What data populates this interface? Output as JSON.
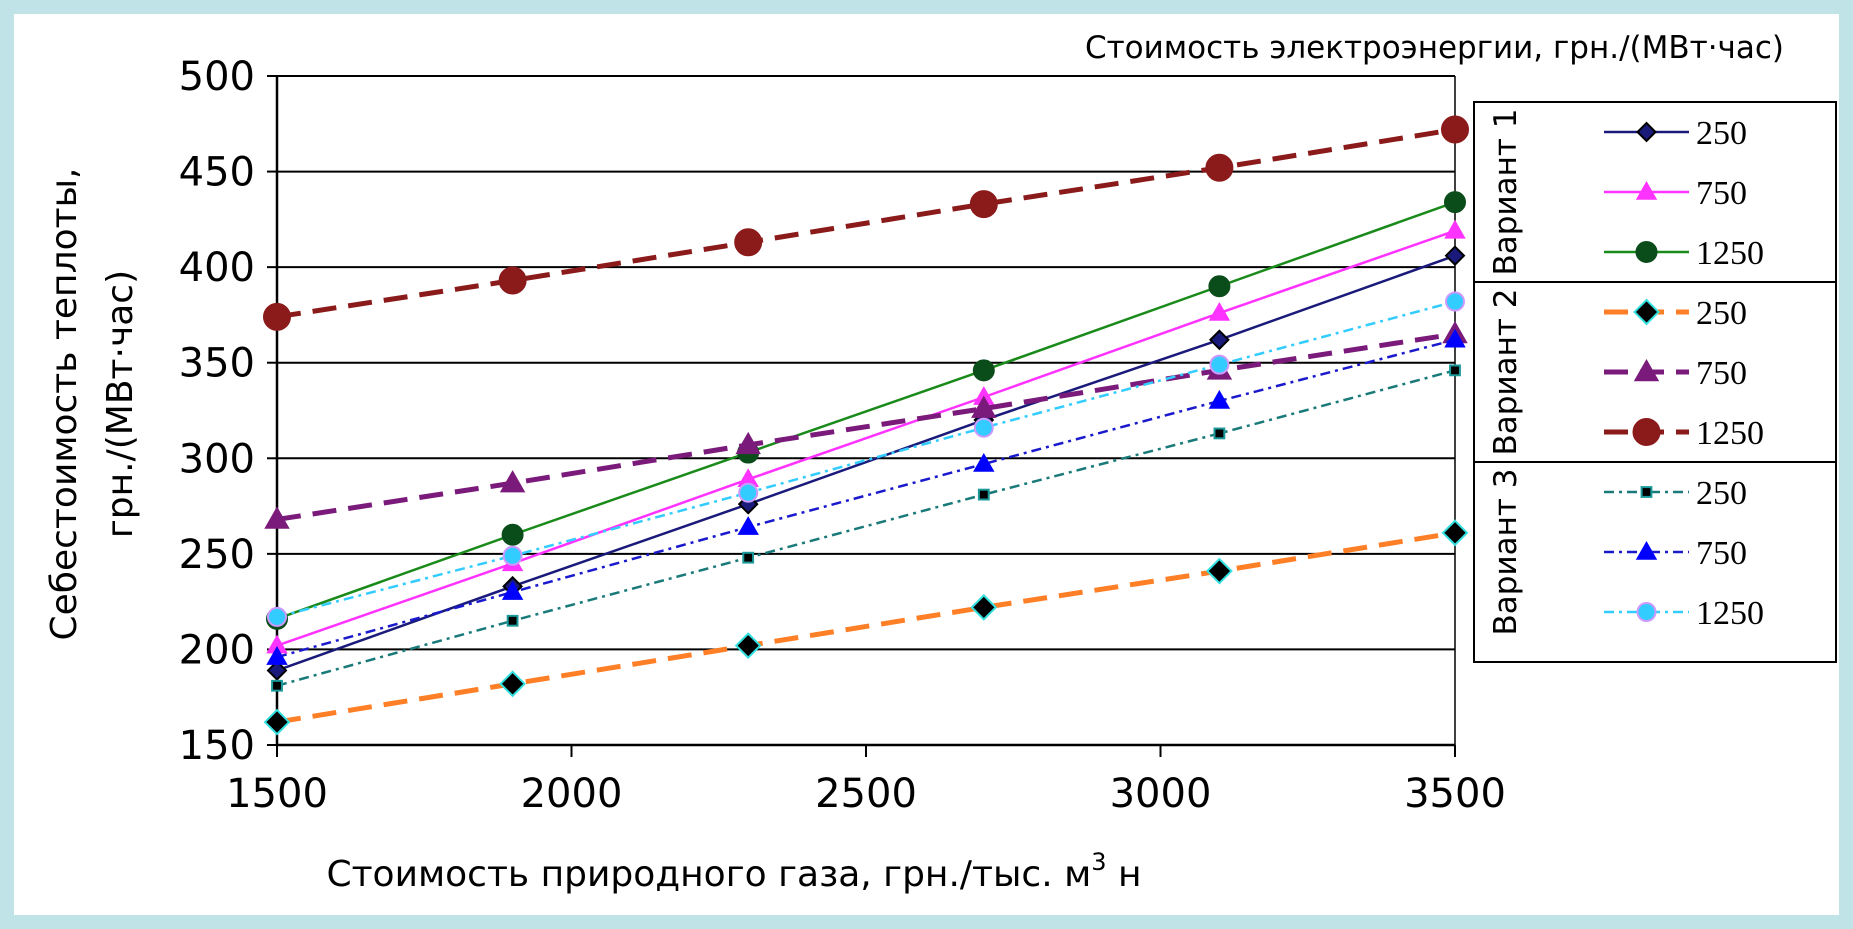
{
  "chart_data": {
    "type": "line",
    "title": "",
    "xlabel": "Стоимость природного газа, грн./тыс. м",
    "xlabel_sup": "3",
    "xlabel_suffix": " н",
    "ylabel_line1": "Себестоимость теплоты,",
    "ylabel_line2": "грн./(МВт·час)",
    "legend_title": "Стоимость электроэнергии, грн./(МВт·час)",
    "legend_position": "right",
    "grid": "horizontal",
    "xlim": [
      1500,
      3500
    ],
    "ylim": [
      150,
      500
    ],
    "x_ticks": [
      1500,
      2000,
      2500,
      3000,
      3500
    ],
    "y_ticks": [
      150,
      200,
      250,
      300,
      350,
      400,
      450,
      500
    ],
    "x": [
      1500,
      1900,
      2300,
      2700,
      3100,
      3500
    ],
    "groups": [
      {
        "label": "Вариант 1",
        "series": [
          {
            "name": "250",
            "color": "#1a1a7a",
            "dash": "",
            "width": 2.5,
            "marker": "diamond",
            "marker_fill": "#1a1a7a",
            "marker_stroke": "#000000",
            "marker_size": 9,
            "values": [
              189,
              233,
              276,
              320,
              362,
              406
            ]
          },
          {
            "name": "750",
            "color": "#ff33ff",
            "dash": "",
            "width": 2.5,
            "marker": "triangle",
            "marker_fill": "#ff33ff",
            "marker_stroke": "#ff33ff",
            "marker_size": 9,
            "values": [
              202,
              245,
              289,
              332,
              376,
              419
            ]
          },
          {
            "name": "1250",
            "color": "#1a8a1a",
            "dash": "",
            "width": 2.5,
            "marker": "circle",
            "marker_fill": "#0b4d1a",
            "marker_stroke": "#0b4d1a",
            "marker_size": 10,
            "values": [
              216,
              260,
              303,
              346,
              390,
              434
            ]
          }
        ]
      },
      {
        "label": "Вариант 2",
        "series": [
          {
            "name": "250",
            "color": "#ff7f27",
            "dash": "24,12",
            "width": 5,
            "marker": "diamond",
            "marker_fill": "#000000",
            "marker_stroke": "#33e0e0",
            "marker_size": 12,
            "values": [
              162,
              182,
              202,
              222,
              241,
              261
            ]
          },
          {
            "name": "750",
            "color": "#7a1a7a",
            "dash": "24,12",
            "width": 5,
            "marker": "triangle",
            "marker_fill": "#7a1a7a",
            "marker_stroke": "#7a1a7a",
            "marker_size": 11,
            "values": [
              268,
              287,
              307,
              326,
              346,
              365
            ]
          },
          {
            "name": "1250",
            "color": "#8b1a1a",
            "dash": "24,12",
            "width": 5,
            "marker": "circle",
            "marker_fill": "#8b1a1a",
            "marker_stroke": "#8b1a1a",
            "marker_size": 13,
            "values": [
              374,
              393,
              413,
              433,
              452,
              472
            ]
          }
        ]
      },
      {
        "label": "Вариант 3",
        "series": [
          {
            "name": "250",
            "color": "#1a7a7a",
            "dash": "10,5,3,5",
            "width": 2.5,
            "marker": "square",
            "marker_fill": "#000000",
            "marker_stroke": "#1a9a9a",
            "marker_size": 7,
            "values": [
              181,
              215,
              248,
              281,
              313,
              346
            ]
          },
          {
            "name": "750",
            "color": "#1a1acc",
            "dash": "10,5,3,5",
            "width": 2.5,
            "marker": "triangle",
            "marker_fill": "#0000ff",
            "marker_stroke": "#0000ff",
            "marker_size": 9,
            "values": [
              196,
              230,
              264,
              297,
              330,
              362
            ]
          },
          {
            "name": "1250",
            "color": "#33ccff",
            "dash": "10,5,3,5",
            "width": 2.5,
            "marker": "circle",
            "marker_fill": "#33ccff",
            "marker_stroke": "#cc99ff",
            "marker_size": 9,
            "values": [
              217,
              249,
              282,
              316,
              349,
              382
            ]
          }
        ]
      }
    ]
  }
}
